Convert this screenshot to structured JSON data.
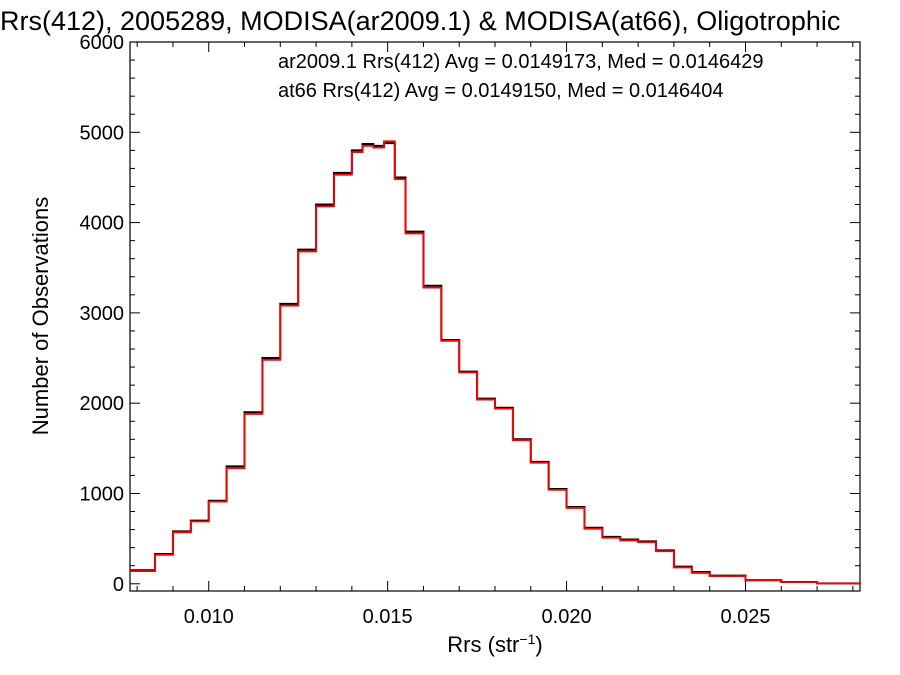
{
  "chart_data": {
    "type": "line",
    "title": "Rrs(412), 2005289, MODISA(ar2009.1) & MODISA(at66), Oligotrophic",
    "xlabel_main": "Rrs (str",
    "xlabel_sup": "−1",
    "xlabel_close": ")",
    "ylabel": "Number of Observations",
    "xlim": [
      0.0078,
      0.0282
    ],
    "ylim": [
      -80,
      6000
    ],
    "x_ticks": [
      {
        "value": 0.01,
        "label": "0.010"
      },
      {
        "value": 0.015,
        "label": "0.015"
      },
      {
        "value": 0.02,
        "label": "0.020"
      },
      {
        "value": 0.025,
        "label": "0.025"
      }
    ],
    "y_ticks": [
      {
        "value": 0,
        "label": "0"
      },
      {
        "value": 1000,
        "label": "1000"
      },
      {
        "value": 2000,
        "label": "2000"
      },
      {
        "value": 3000,
        "label": "3000"
      },
      {
        "value": 4000,
        "label": "4000"
      },
      {
        "value": 5000,
        "label": "5000"
      },
      {
        "value": 6000,
        "label": "6000"
      }
    ],
    "legend": [
      {
        "text": "ar2009.1 Rrs(412) Avg = 0.0149173, Med = 0.0146429",
        "color": "#000000"
      },
      {
        "text": "at66 Rrs(412) Avg = 0.0149150, Med = 0.0146404",
        "color": "#ff0000"
      }
    ],
    "legend_position": "top-right",
    "grid": false,
    "line_style": "step",
    "series": [
      {
        "name": "ar2009.1",
        "color": "#000000",
        "x": [
          0.0078,
          0.0085,
          0.009,
          0.0095,
          0.01,
          0.0105,
          0.011,
          0.0115,
          0.012,
          0.0125,
          0.013,
          0.0135,
          0.014,
          0.0143,
          0.0146,
          0.0149,
          0.0152,
          0.0155,
          0.016,
          0.0165,
          0.017,
          0.0175,
          0.018,
          0.0185,
          0.019,
          0.0195,
          0.02,
          0.0205,
          0.021,
          0.0215,
          0.022,
          0.0225,
          0.023,
          0.0235,
          0.024,
          0.025,
          0.026,
          0.027,
          0.0282
        ],
        "y": [
          150,
          330,
          580,
          700,
          920,
          1300,
          1900,
          2500,
          3100,
          3700,
          4200,
          4550,
          4800,
          4870,
          4850,
          4880,
          4500,
          3900,
          3300,
          2700,
          2350,
          2050,
          1950,
          1600,
          1350,
          1050,
          850,
          620,
          520,
          490,
          470,
          370,
          190,
          130,
          90,
          40,
          20,
          5,
          0
        ]
      },
      {
        "name": "at66",
        "color": "#ff0000",
        "x": [
          0.0078,
          0.0085,
          0.009,
          0.0095,
          0.01,
          0.0105,
          0.011,
          0.0115,
          0.012,
          0.0125,
          0.013,
          0.0135,
          0.014,
          0.0143,
          0.0146,
          0.0149,
          0.0152,
          0.0155,
          0.016,
          0.0165,
          0.017,
          0.0175,
          0.018,
          0.0185,
          0.019,
          0.0195,
          0.02,
          0.0205,
          0.021,
          0.0215,
          0.022,
          0.0225,
          0.023,
          0.0235,
          0.024,
          0.025,
          0.026,
          0.027,
          0.0282
        ],
        "y": [
          140,
          320,
          570,
          690,
          910,
          1280,
          1880,
          2480,
          3080,
          3680,
          4180,
          4530,
          4780,
          4850,
          4830,
          4900,
          4480,
          3880,
          3280,
          2690,
          2340,
          2040,
          1940,
          1590,
          1340,
          1040,
          840,
          610,
          510,
          480,
          460,
          360,
          180,
          120,
          85,
          38,
          18,
          4,
          0
        ]
      }
    ]
  }
}
